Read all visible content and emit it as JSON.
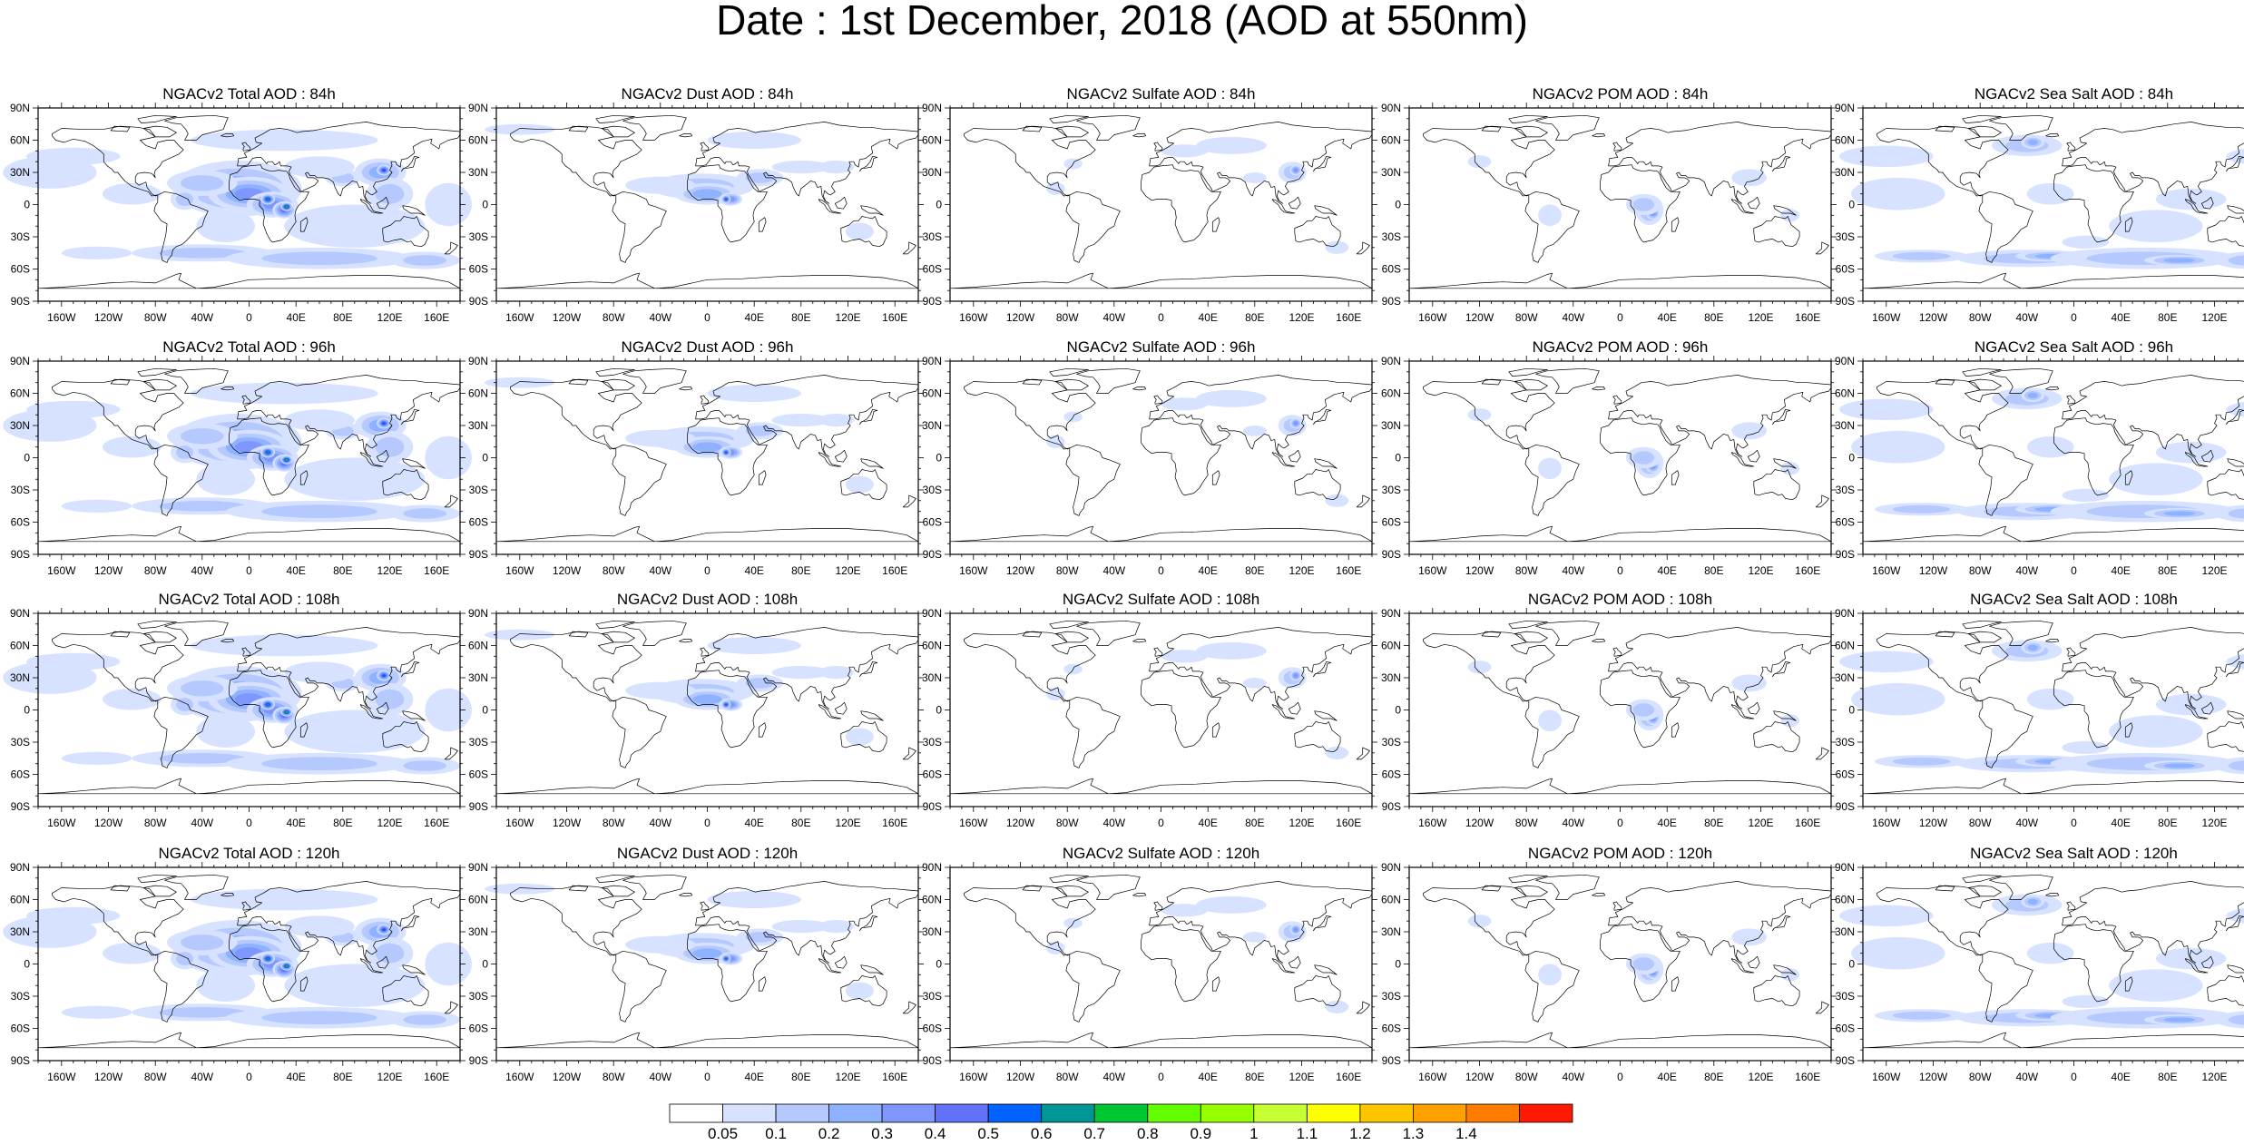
{
  "title": "Date : 1st December, 2018 (AOD at 550nm)",
  "lat_labels": [
    "90N",
    "60N",
    "30N",
    "0",
    "30S",
    "60S",
    "90S"
  ],
  "lon_labels": [
    "160W",
    "120W",
    "80W",
    "40W",
    "0",
    "40E",
    "80E",
    "120E",
    "160E"
  ],
  "lon_values": [
    -160,
    -120,
    -80,
    -40,
    0,
    40,
    80,
    120,
    160
  ],
  "lat_values": [
    90,
    60,
    30,
    0,
    -30,
    -60,
    -90
  ],
  "species": [
    {
      "key": "total",
      "name": "Total AOD"
    },
    {
      "key": "dust",
      "name": "Dust AOD"
    },
    {
      "key": "sulfate",
      "name": "Sulfate AOD"
    },
    {
      "key": "pom",
      "name": "POM AOD"
    },
    {
      "key": "seasalt",
      "name": "Sea Salt AOD"
    }
  ],
  "panels": [
    [
      "NGACv2 Total AOD : 84h",
      "NGACv2 Dust AOD : 84h",
      "NGACv2 Sulfate AOD : 84h",
      "NGACv2 POM AOD : 84h",
      "NGACv2 Sea Salt AOD : 84h"
    ],
    [
      "NGACv2 Total AOD : 96h",
      "NGACv2 Dust AOD : 96h",
      "NGACv2 Sulfate AOD : 96h",
      "NGACv2 POM AOD : 96h",
      "NGACv2 Sea Salt AOD : 96h"
    ],
    [
      "NGACv2 Total AOD : 108h",
      "NGACv2 Dust AOD : 108h",
      "NGACv2 Sulfate AOD : 108h",
      "NGACv2 POM AOD : 108h",
      "NGACv2 Sea Salt AOD : 108h"
    ],
    [
      "NGACv2 Total AOD : 120h",
      "NGACv2 Dust AOD : 120h",
      "NGACv2 Sulfate AOD : 120h",
      "NGACv2 POM AOD : 120h",
      "NGACv2 Sea Salt  AOD : 120h"
    ]
  ],
  "colorbar": {
    "labels": [
      "0.05",
      "0.1",
      "0.2",
      "0.3",
      "0.4",
      "0.5",
      "0.6",
      "0.7",
      "0.8",
      "0.9",
      "1",
      "1.1",
      "1.2",
      "1.3",
      "1.4"
    ],
    "colors": [
      "#ffffff",
      "#d6e2ff",
      "#b5c9ff",
      "#8eb2ff",
      "#7f96ff",
      "#6370f8",
      "#0063ff",
      "#009696",
      "#00c633",
      "#63ff00",
      "#96ff00",
      "#c6ff33",
      "#ffff00",
      "#ffc600",
      "#ffa000",
      "#ff7c00",
      "#ff1900"
    ]
  },
  "colors": {
    "land_outline": "#000000",
    "ocean_bg": "#ffffff"
  }
}
